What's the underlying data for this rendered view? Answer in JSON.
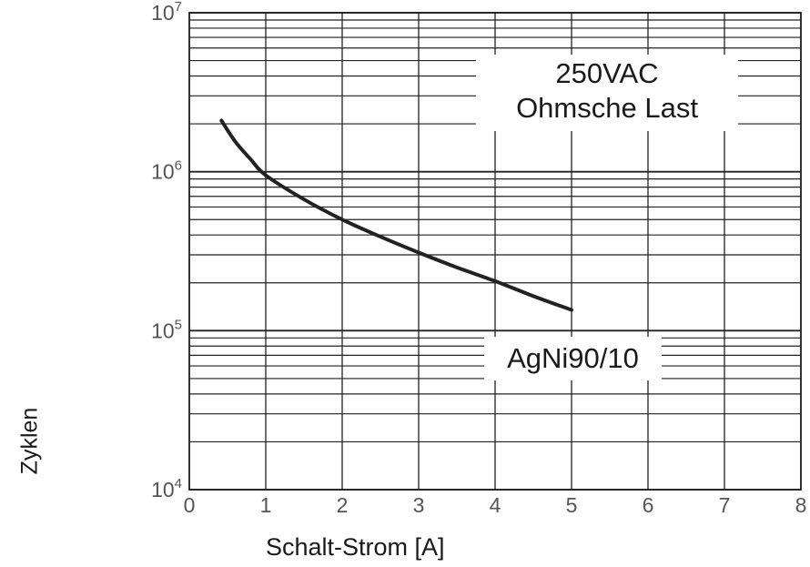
{
  "chart_data": {
    "type": "line",
    "xlabel": "Schalt-Strom [A]",
    "ylabel": "Zyklen",
    "xlim": [
      0,
      8
    ],
    "ylim": [
      10000,
      10000000
    ],
    "yscale": "log",
    "grid": true,
    "x_ticks": [
      "0",
      "1",
      "2",
      "3",
      "4",
      "5",
      "6",
      "7",
      "8"
    ],
    "y_ticks": [
      {
        "base": "10",
        "exp": "4",
        "value": 10000
      },
      {
        "base": "10",
        "exp": "5",
        "value": 100000
      },
      {
        "base": "10",
        "exp": "6",
        "value": 1000000
      },
      {
        "base": "10",
        "exp": "7",
        "value": 10000000
      }
    ],
    "annotations": {
      "condition_line1": "250VAC",
      "condition_line2": "Ohmsche Last",
      "series_label": "AgNi90/10"
    },
    "series": [
      {
        "name": "AgNi90/10",
        "color": "#222222",
        "x": [
          0.42,
          0.6,
          0.8,
          1.0,
          1.5,
          2.0,
          2.5,
          3.0,
          3.5,
          4.0,
          4.5,
          5.0
        ],
        "y": [
          2100000,
          1550000,
          1200000,
          950000,
          670000,
          500000,
          390000,
          310000,
          250000,
          205000,
          165000,
          135000
        ]
      }
    ]
  }
}
